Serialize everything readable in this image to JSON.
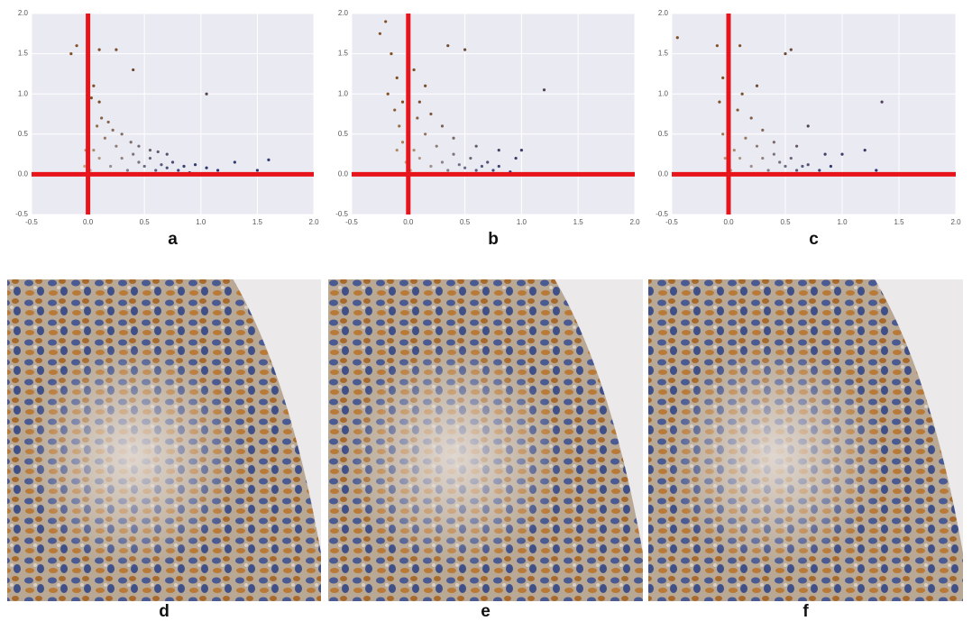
{
  "chart_data": [
    {
      "type": "scatter",
      "label": "a",
      "x": [
        0.02,
        0.05,
        0.08,
        0.1,
        0.15,
        0.2,
        0.25,
        0.3,
        0.35,
        0.4,
        0.45,
        0.5,
        0.55,
        0.6,
        0.65,
        0.7,
        0.75,
        0.8,
        0.85,
        0.9,
        0.0,
        0.03,
        0.05,
        0.1,
        0.12,
        0.18,
        0.22,
        0.3,
        0.38,
        0.45,
        0.55,
        0.62,
        0.7,
        0.95,
        1.05,
        1.15,
        1.3,
        1.5,
        1.6,
        1.05,
        0.25,
        -0.15,
        -0.1,
        0.1,
        0.4,
        -0.02,
        -0.03,
        0.0
      ],
      "y": [
        0.05,
        0.3,
        0.6,
        0.2,
        0.45,
        0.1,
        0.35,
        0.2,
        0.05,
        0.25,
        0.15,
        0.1,
        0.2,
        0.05,
        0.12,
        0.08,
        0.15,
        0.05,
        0.1,
        0.02,
        0.8,
        0.95,
        1.1,
        0.9,
        0.7,
        0.65,
        0.55,
        0.5,
        0.4,
        0.35,
        0.3,
        0.28,
        0.25,
        0.12,
        0.08,
        0.05,
        0.15,
        0.05,
        0.18,
        1.0,
        1.55,
        1.5,
        1.6,
        1.55,
        1.3,
        0.3,
        0.1,
        0.5
      ],
      "xlim": [
        -0.5,
        2
      ],
      "ylim": [
        -0.5,
        2
      ],
      "xticks": [
        -0.5,
        {
          "value": 0,
          "label": "0.0"
        },
        0.5,
        {
          "value": 1,
          "label": "1.0"
        },
        1.5,
        {
          "value": 2,
          "label": "2.0"
        }
      ],
      "yticks": [
        -0.5,
        {
          "value": 0,
          "label": "0.0"
        },
        0.5,
        {
          "value": 1,
          "label": "1.0"
        },
        1.5,
        {
          "value": 2,
          "label": "2.0"
        }
      ],
      "grid": true,
      "reference_lines": {
        "x": 0,
        "y": 0,
        "color": "#e8141b"
      }
    },
    {
      "type": "scatter",
      "label": "b",
      "x": [
        -0.25,
        -0.2,
        -0.15,
        -0.1,
        -0.18,
        -0.12,
        -0.08,
        -0.05,
        -0.02,
        0.0,
        0.02,
        0.05,
        0.08,
        0.1,
        0.15,
        0.2,
        0.25,
        0.3,
        0.35,
        0.4,
        0.45,
        0.5,
        0.55,
        0.6,
        0.65,
        0.7,
        0.75,
        0.8,
        0.9,
        1.0,
        1.2,
        0.5,
        0.35,
        0.15,
        0.3,
        0.4,
        0.2,
        0.1,
        -0.05,
        0.05,
        0.6,
        0.8,
        0.95,
        -0.1
      ],
      "y": [
        1.75,
        1.9,
        1.5,
        1.2,
        1.0,
        0.8,
        0.6,
        0.4,
        0.15,
        1.0,
        0.05,
        0.3,
        0.7,
        0.2,
        0.5,
        0.1,
        0.35,
        0.15,
        0.05,
        0.25,
        0.12,
        0.08,
        0.2,
        0.05,
        0.1,
        0.15,
        0.05,
        0.1,
        0.03,
        0.3,
        1.05,
        1.55,
        1.6,
        1.1,
        0.6,
        0.45,
        0.75,
        0.9,
        0.9,
        1.3,
        0.35,
        0.3,
        0.2,
        0.3
      ],
      "xlim": [
        -0.5,
        2
      ],
      "ylim": [
        -0.5,
        2
      ],
      "xticks": [
        -0.5,
        {
          "value": 0,
          "label": "0.0"
        },
        0.5,
        {
          "value": 1,
          "label": "1.0"
        },
        1.5,
        {
          "value": 2,
          "label": "2.0"
        }
      ],
      "yticks": [
        -0.5,
        {
          "value": 0,
          "label": "0.0"
        },
        0.5,
        {
          "value": 1,
          "label": "1.0"
        },
        1.5,
        {
          "value": 2,
          "label": "2.0"
        }
      ],
      "grid": true,
      "reference_lines": {
        "x": 0,
        "y": 0,
        "color": "#e8141b"
      }
    },
    {
      "type": "scatter",
      "label": "c",
      "x": [
        -0.45,
        -0.1,
        -0.05,
        -0.08,
        -0.05,
        -0.03,
        0.0,
        0.02,
        0.05,
        0.08,
        0.1,
        0.15,
        0.2,
        0.25,
        0.3,
        0.35,
        0.4,
        0.45,
        0.5,
        0.55,
        0.6,
        0.65,
        0.7,
        0.8,
        0.9,
        1.0,
        1.2,
        1.3,
        1.35,
        0.5,
        0.1,
        0.55,
        0.2,
        0.3,
        0.4,
        0.12,
        0.25,
        0.7,
        0.6,
        0.85
      ],
      "y": [
        1.7,
        1.6,
        1.2,
        0.9,
        0.5,
        0.2,
        1.05,
        0.05,
        0.3,
        0.8,
        0.2,
        0.45,
        0.1,
        0.35,
        0.2,
        0.05,
        0.25,
        0.15,
        0.1,
        0.2,
        0.05,
        0.1,
        0.12,
        0.05,
        0.1,
        0.25,
        0.3,
        0.05,
        0.9,
        1.5,
        1.6,
        1.55,
        0.7,
        0.55,
        0.4,
        1.0,
        1.1,
        0.6,
        0.35,
        0.25
      ],
      "xlim": [
        -0.5,
        2
      ],
      "ylim": [
        -0.5,
        2
      ],
      "xticks": [
        -0.5,
        {
          "value": 0,
          "label": "0.0"
        },
        0.5,
        {
          "value": 1,
          "label": "1.0"
        },
        1.5,
        {
          "value": 2,
          "label": "2.0"
        }
      ],
      "yticks": [
        -0.5,
        {
          "value": 0,
          "label": "0.0"
        },
        0.5,
        {
          "value": 1,
          "label": "1.0"
        },
        1.5,
        {
          "value": 2,
          "label": "2.0"
        }
      ],
      "grid": true,
      "reference_lines": {
        "x": 0,
        "y": 0,
        "color": "#e8141b"
      }
    }
  ],
  "images": [
    {
      "label": "d"
    },
    {
      "label": "e"
    },
    {
      "label": "f"
    }
  ]
}
